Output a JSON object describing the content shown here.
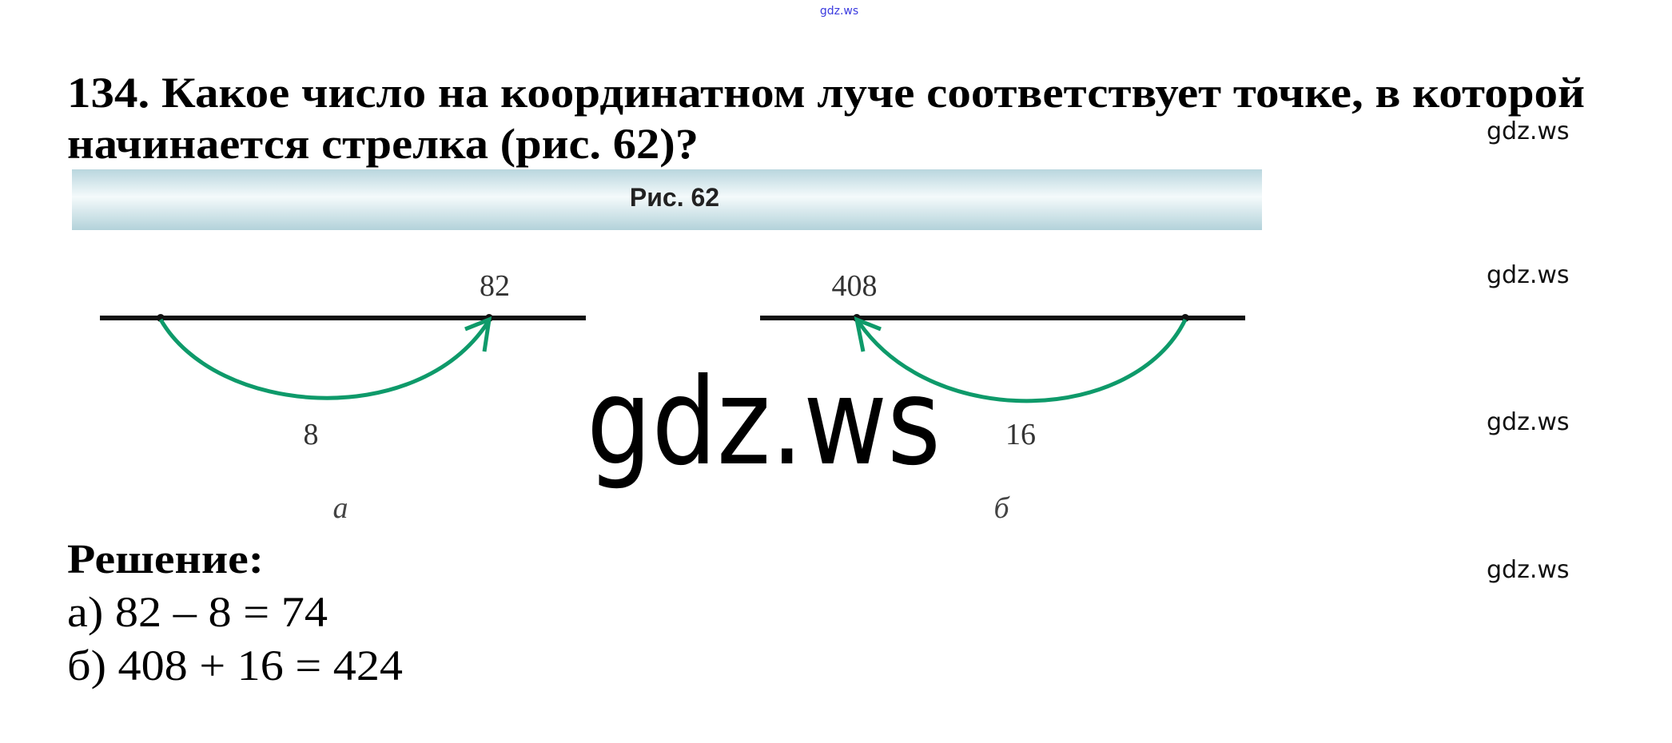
{
  "watermarks": {
    "top": "gdz.ws",
    "side": [
      "gdz.ws",
      "gdz.ws",
      "gdz.ws",
      "gdz.ws"
    ],
    "center": "gdz.ws",
    "top_color": "#3a3adf"
  },
  "problem": {
    "line1": "134. Какое число на координатном луче соответствует точке, в которой",
    "line2": "начинается стрелка (рис. 62)?"
  },
  "figure": {
    "caption": "Рис. 62",
    "arrow_color": "#0e9a6a",
    "a": {
      "top_label": "82",
      "arc_label": "8",
      "name": "а"
    },
    "b": {
      "top_label": "408",
      "arc_label": "16",
      "name": "б"
    }
  },
  "solution": {
    "heading": "Решение:",
    "a": "а) 82 – 8 = 74",
    "b": "б) 408 + 16 = 424"
  }
}
